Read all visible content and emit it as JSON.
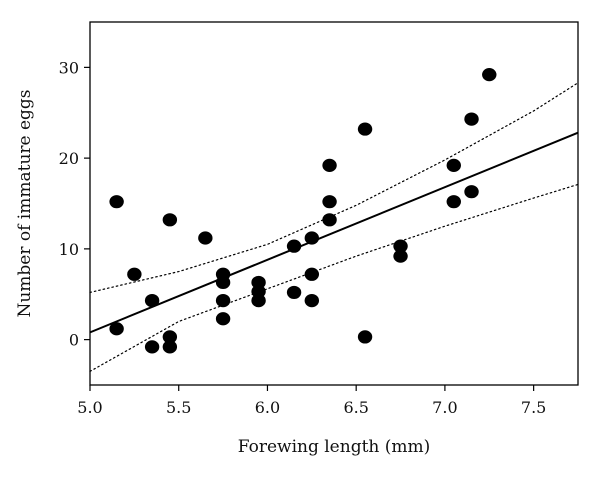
{
  "chart_data": {
    "type": "scatter",
    "title": "",
    "xlabel": "Forewing length (mm)",
    "ylabel": "Number of immature eggs",
    "xlim": [
      5.0,
      7.75
    ],
    "ylim": [
      -5,
      35
    ],
    "x_ticks": [
      5.0,
      5.5,
      6.0,
      6.5,
      7.0,
      7.5
    ],
    "x_tick_labels": [
      "5.0",
      "5.5",
      "6.0",
      "6.5",
      "7.0",
      "7.5"
    ],
    "y_ticks": [
      0,
      10,
      20,
      30
    ],
    "y_tick_labels": [
      "0",
      "10",
      "20",
      "30"
    ],
    "grid": false,
    "legend": "none",
    "points": [
      [
        5.15,
        15.2
      ],
      [
        5.15,
        1.2
      ],
      [
        5.25,
        7.2
      ],
      [
        5.35,
        4.3
      ],
      [
        5.35,
        -0.8
      ],
      [
        5.45,
        13.2
      ],
      [
        5.45,
        0.3
      ],
      [
        5.45,
        -0.8
      ],
      [
        5.65,
        11.2
      ],
      [
        5.75,
        7.2
      ],
      [
        5.75,
        6.3
      ],
      [
        5.75,
        4.3
      ],
      [
        5.75,
        2.3
      ],
      [
        5.95,
        6.3
      ],
      [
        5.95,
        5.3
      ],
      [
        5.95,
        4.3
      ],
      [
        6.15,
        10.3
      ],
      [
        6.15,
        5.2
      ],
      [
        6.25,
        11.2
      ],
      [
        6.25,
        7.2
      ],
      [
        6.25,
        4.3
      ],
      [
        6.35,
        19.2
      ],
      [
        6.35,
        15.2
      ],
      [
        6.35,
        13.2
      ],
      [
        6.55,
        23.2
      ],
      [
        6.55,
        0.3
      ],
      [
        6.75,
        10.3
      ],
      [
        6.75,
        9.2
      ],
      [
        7.05,
        19.2
      ],
      [
        7.05,
        15.2
      ],
      [
        7.15,
        24.3
      ],
      [
        7.15,
        16.3
      ],
      [
        7.25,
        29.2
      ]
    ],
    "fit_line": {
      "x": [
        5.0,
        7.75
      ],
      "y": [
        0.8,
        22.8
      ]
    },
    "confidence_upper": {
      "x": [
        5.0,
        5.5,
        6.0,
        6.5,
        7.0,
        7.5,
        7.75
      ],
      "y": [
        5.2,
        7.5,
        10.5,
        14.8,
        19.8,
        25.2,
        28.3
      ]
    },
    "confidence_lower": {
      "x": [
        5.0,
        5.5,
        6.0,
        6.5,
        7.0,
        7.5,
        7.75
      ],
      "y": [
        -3.5,
        2.0,
        5.6,
        9.2,
        12.5,
        15.6,
        17.1
      ]
    },
    "colors": {
      "points": "#000000",
      "line": "#000000",
      "axes": "#000000"
    }
  }
}
